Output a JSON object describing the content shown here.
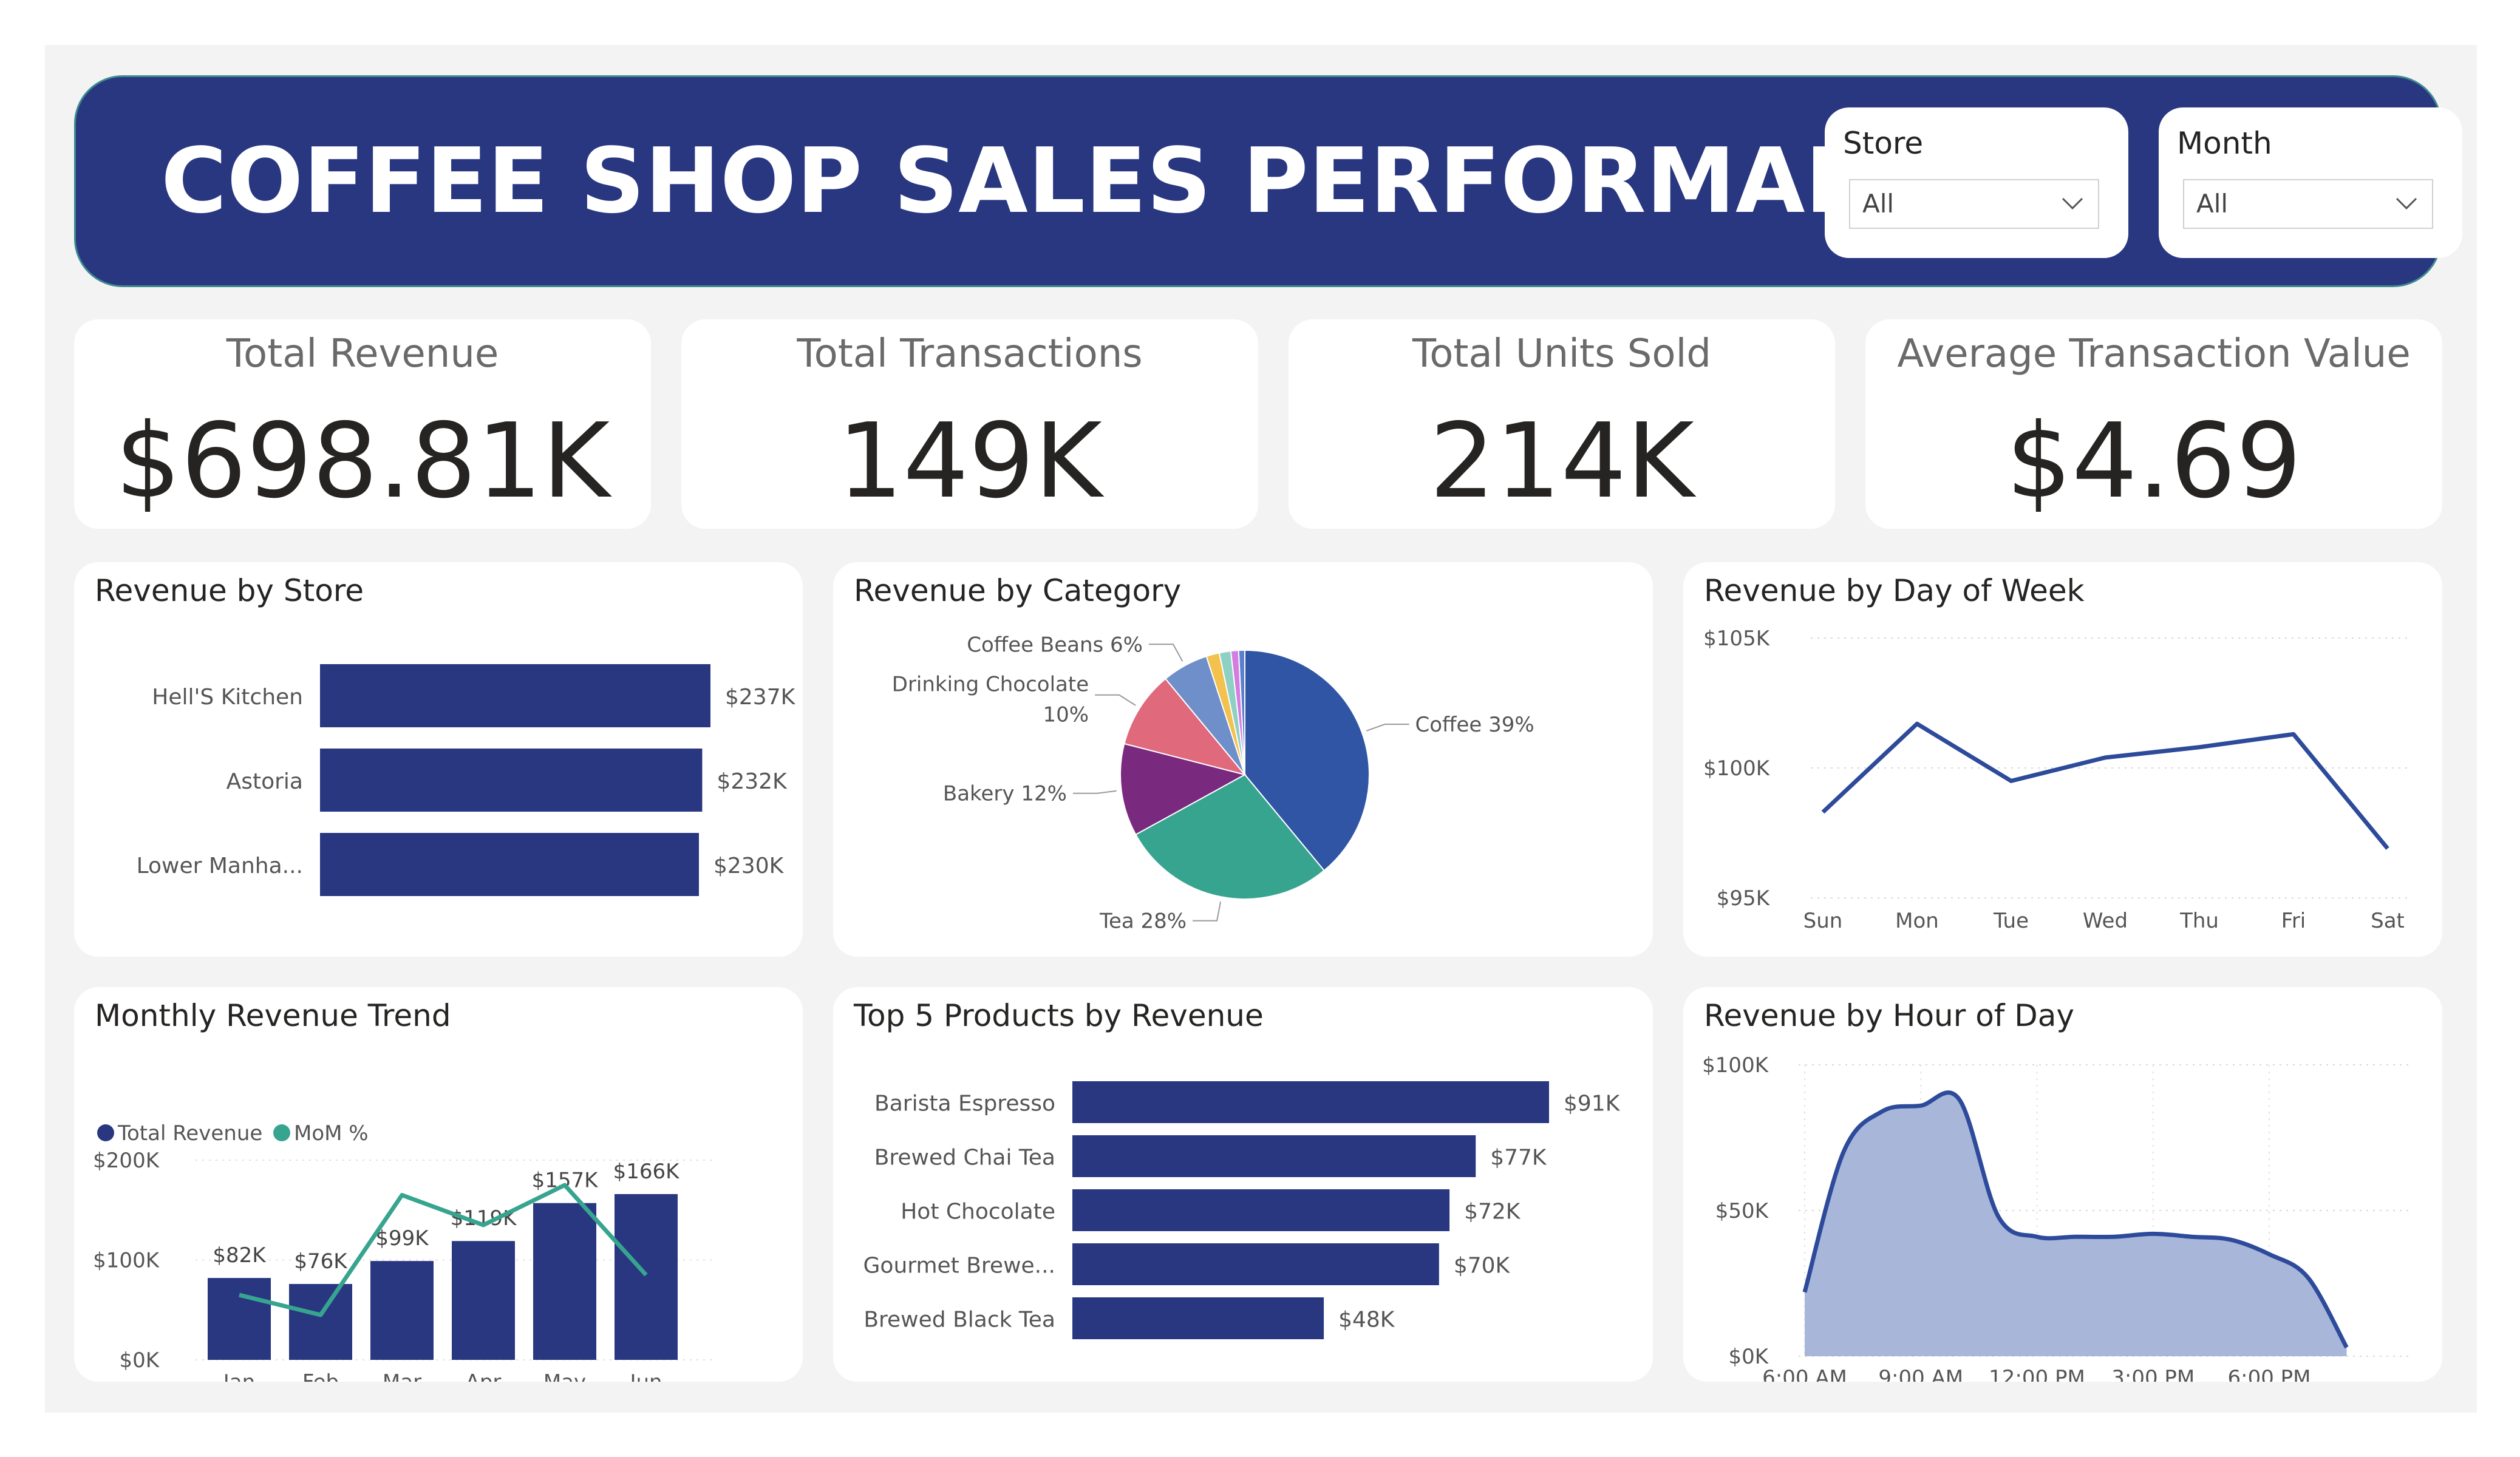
{
  "header": {
    "title": "COFFEE SHOP SALES PERFORMANCE",
    "store_filter": {
      "label": "Store",
      "value": "All"
    },
    "month_filter": {
      "label": "Month",
      "value": "All"
    }
  },
  "kpis": [
    {
      "label": "Total Revenue",
      "value": "$698.81K"
    },
    {
      "label": "Total Transactions",
      "value": "149K"
    },
    {
      "label": "Total Units Sold",
      "value": "214K"
    },
    {
      "label": "Average Transaction Value",
      "value": "$4.69"
    }
  ],
  "colors": {
    "navy": "#283780",
    "teal": "#37a48f",
    "area_fill": "#a7b6d9",
    "line_blue": "#2d4a9b"
  },
  "chart_data": [
    {
      "id": "store",
      "type": "bar",
      "orientation": "horizontal",
      "title": "Revenue by Store",
      "categories": [
        "Hell'S Kitchen",
        "Astoria",
        "Lower Manha..."
      ],
      "values": [
        237,
        232,
        230
      ],
      "labels": [
        "$237K",
        "$232K",
        "$230K"
      ],
      "unit": "K",
      "xlim": [
        0,
        237
      ]
    },
    {
      "id": "category",
      "type": "pie",
      "title": "Revenue by Category",
      "slices": [
        {
          "name": "Coffee",
          "value": 39,
          "label": "Coffee 39%",
          "color": "#2f55a4"
        },
        {
          "name": "Tea",
          "value": 28,
          "label": "Tea 28%",
          "color": "#37a48f"
        },
        {
          "name": "Bakery",
          "value": 12,
          "label": "Bakery 12%",
          "color": "#7a2a7e"
        },
        {
          "name": "Drinking Chocolate",
          "value": 10,
          "label": "Drinking Chocolate 10%",
          "color": "#e0697c"
        },
        {
          "name": "Coffee Beans",
          "value": 6,
          "label": "Coffee Beans 6%",
          "color": "#6e8fca"
        },
        {
          "name": "",
          "value": 1.7,
          "label": "",
          "color": "#f2c14e"
        },
        {
          "name": "",
          "value": 1.5,
          "label": "",
          "color": "#8fd0c4"
        },
        {
          "name": "",
          "value": 1.0,
          "label": "",
          "color": "#d27ee0"
        },
        {
          "name": "",
          "value": 0.8,
          "label": "",
          "color": "#5c7fd0"
        }
      ]
    },
    {
      "id": "dow",
      "type": "line",
      "title": "Revenue by Day of Week",
      "categories": [
        "Sun",
        "Mon",
        "Tue",
        "Wed",
        "Thu",
        "Fri",
        "Sat"
      ],
      "values": [
        98.3,
        101.7,
        99.5,
        100.4,
        100.8,
        101.3,
        96.9
      ],
      "unit": "K",
      "ylim": [
        95,
        105
      ],
      "yticks": [
        "$95K",
        "$100K",
        "$105K"
      ],
      "grid": true
    },
    {
      "id": "monthly",
      "type": "bar+line",
      "title": "Monthly Revenue Trend",
      "legend": [
        "Total Revenue",
        "MoM %"
      ],
      "categories": [
        "Jan",
        "Feb",
        "Mar",
        "Apr",
        "May",
        "Jun"
      ],
      "values": [
        82,
        76,
        99,
        119,
        157,
        166
      ],
      "labels": [
        "$82K",
        "$76K",
        "$99K",
        "$119K",
        "$157K",
        "$166K"
      ],
      "mom_line": [
        65,
        45,
        165,
        135,
        175,
        85
      ],
      "unit": "K",
      "ylim": [
        0,
        200
      ],
      "yticks": [
        "$0K",
        "$100K",
        "$200K"
      ]
    },
    {
      "id": "products",
      "type": "bar",
      "orientation": "horizontal",
      "title": "Top 5 Products by Revenue",
      "categories": [
        "Barista Espresso",
        "Brewed Chai Tea",
        "Hot Chocolate",
        "Gourmet Brewe...",
        "Brewed Black Tea"
      ],
      "values": [
        91,
        77,
        72,
        70,
        48
      ],
      "labels": [
        "$91K",
        "$77K",
        "$72K",
        "$70K",
        "$48K"
      ],
      "unit": "K",
      "xlim": [
        0,
        91
      ]
    },
    {
      "id": "hour",
      "type": "area",
      "title": "Revenue by Hour of Day",
      "x": [
        6,
        7,
        8,
        9,
        10,
        11,
        12,
        13,
        14,
        15,
        16,
        17,
        18,
        19,
        20
      ],
      "values": [
        22,
        70,
        84,
        86,
        88,
        48,
        41,
        41,
        41,
        42,
        41,
        40,
        35,
        27,
        3
      ],
      "xticks": [
        "6:00 AM",
        "9:00 AM",
        "12:00 PM",
        "3:00 PM",
        "6:00 PM"
      ],
      "xtick_values": [
        6,
        9,
        12,
        15,
        18
      ],
      "unit": "K",
      "ylim": [
        0,
        100
      ],
      "yticks": [
        "$0K",
        "$50K",
        "$100K"
      ],
      "grid": true
    }
  ]
}
